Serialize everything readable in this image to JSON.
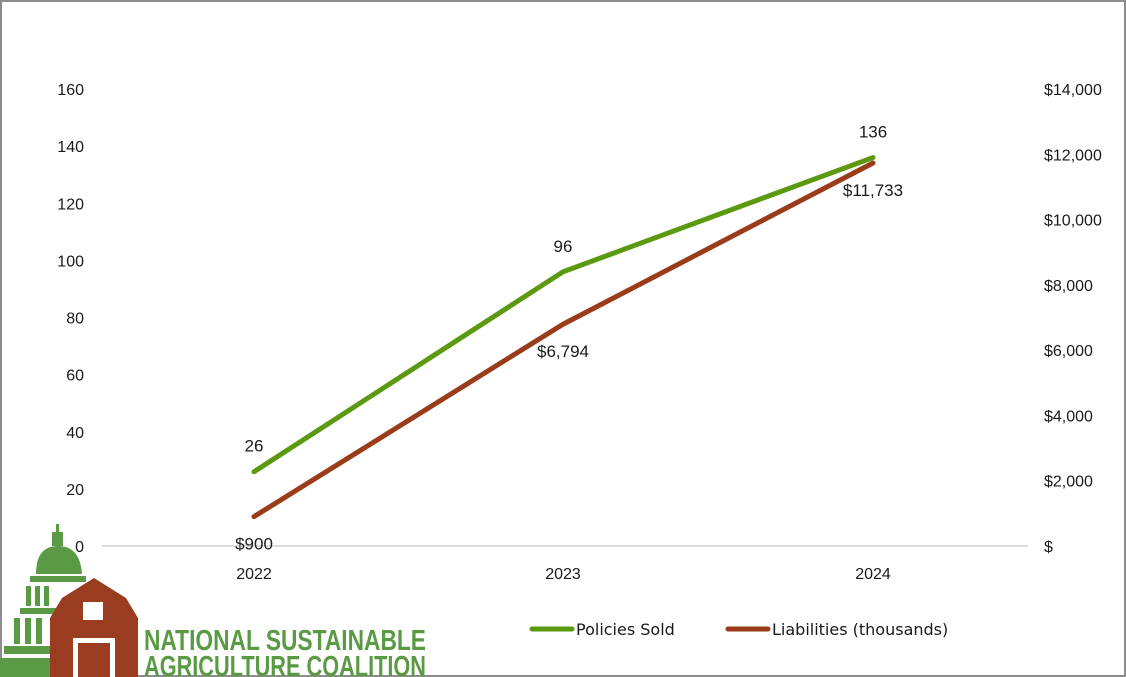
{
  "chart_data": {
    "type": "line",
    "title": "",
    "categories": [
      "2022",
      "2023",
      "2024"
    ],
    "series": [
      {
        "name": "Policies Sold",
        "axis": "left",
        "values": [
          26,
          96,
          136
        ],
        "labels": [
          "26",
          "96",
          "136"
        ],
        "color": "#5b9a10"
      },
      {
        "name": "Liabilities (thousands)",
        "axis": "right",
        "values": [
          900,
          6794,
          11733
        ],
        "labels": [
          "$900",
          "$6,794",
          "$11,733"
        ],
        "color": "#9a3c1a"
      }
    ],
    "left_axis": {
      "ylim": [
        0,
        160
      ],
      "ticks": [
        0,
        20,
        40,
        60,
        80,
        100,
        120,
        140,
        160
      ],
      "tick_labels": [
        "0",
        "20",
        "40",
        "60",
        "80",
        "100",
        "120",
        "140",
        "160"
      ]
    },
    "right_axis": {
      "ylim": [
        0,
        14000
      ],
      "ticks": [
        0,
        2000,
        4000,
        6000,
        8000,
        10000,
        12000,
        14000
      ],
      "tick_labels": [
        "$",
        "$2,000",
        "$4,000",
        "$6,000",
        "$8,000",
        "$10,000",
        "$12,000",
        "$14,000"
      ]
    },
    "xlabel": "",
    "ylabel": "",
    "grid": false,
    "legend": "bottom"
  },
  "logo": {
    "line1": "NATIONAL SUSTAINABLE",
    "line2": "AGRICULTURE COALITION",
    "green": "#5b9a45",
    "barn": "#9a3c1f"
  }
}
